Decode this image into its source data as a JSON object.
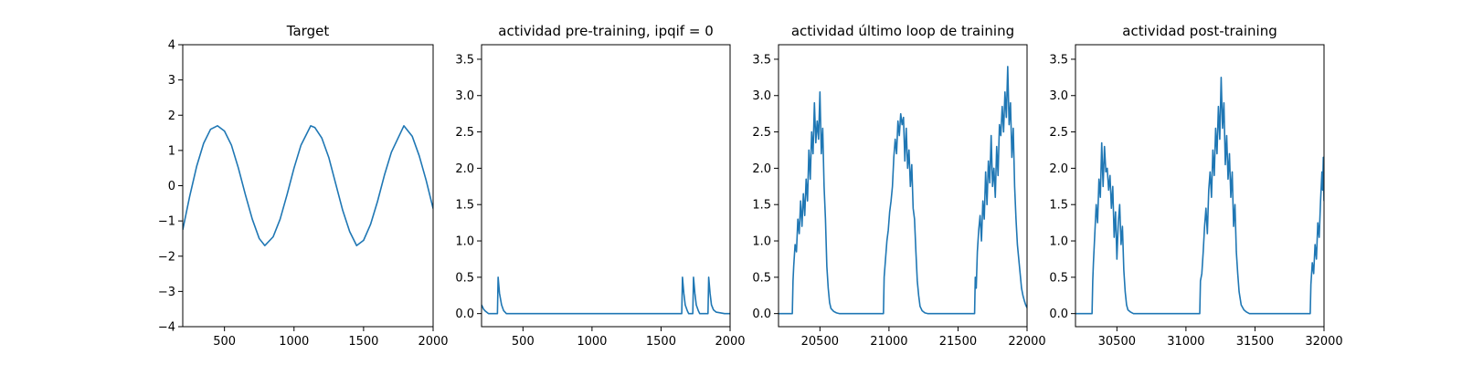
{
  "chart_data": [
    {
      "type": "line",
      "title": "Target",
      "xlim": [
        200,
        2000
      ],
      "ylim": [
        -4,
        4
      ],
      "xticks": [
        500,
        1000,
        1500,
        2000
      ],
      "yticks": [
        -4,
        -3,
        -2,
        -1,
        0,
        1,
        2,
        3,
        4
      ],
      "xtick_labels": [
        "500",
        "1000",
        "1500",
        "2000"
      ],
      "ytick_labels": [
        "−4",
        "−3",
        "−2",
        "−1",
        "0",
        "1",
        "2",
        "3",
        "4"
      ],
      "series": [
        {
          "color": "#1f77b4",
          "x": [
            200,
            250,
            300,
            350,
            400,
            450,
            500,
            550,
            600,
            650,
            700,
            750,
            790,
            850,
            900,
            950,
            1000,
            1050,
            1120,
            1150,
            1200,
            1250,
            1300,
            1350,
            1400,
            1450,
            1500,
            1550,
            1600,
            1650,
            1700,
            1790,
            1850,
            1900,
            1950,
            2000
          ],
          "y": [
            -1.25,
            -0.3,
            0.55,
            1.2,
            1.6,
            1.7,
            1.55,
            1.15,
            0.5,
            -0.25,
            -0.95,
            -1.5,
            -1.7,
            -1.45,
            -0.95,
            -0.25,
            0.5,
            1.15,
            1.7,
            1.65,
            1.35,
            0.8,
            0.05,
            -0.7,
            -1.3,
            -1.7,
            -1.55,
            -1.1,
            -0.45,
            0.3,
            0.95,
            1.7,
            1.4,
            0.85,
            0.15,
            -0.65
          ]
        }
      ]
    },
    {
      "type": "line",
      "title": "actividad pre-training, ipqif = 0",
      "xlim": [
        200,
        2000
      ],
      "ylim": [
        -0.18,
        3.7
      ],
      "xticks": [
        500,
        1000,
        1500,
        2000
      ],
      "yticks": [
        0.0,
        0.5,
        1.0,
        1.5,
        2.0,
        2.5,
        3.0,
        3.5
      ],
      "xtick_labels": [
        "500",
        "1000",
        "1500",
        "2000"
      ],
      "ytick_labels": [
        "0.0",
        "0.5",
        "1.0",
        "1.5",
        "2.0",
        "2.5",
        "3.0",
        "3.5"
      ],
      "series": [
        {
          "color": "#1f77b4",
          "x": [
            200,
            215,
            230,
            250,
            315,
            320,
            330,
            345,
            360,
            380,
            1650,
            1655,
            1665,
            1675,
            1690,
            1700,
            1730,
            1735,
            1745,
            1755,
            1770,
            1780,
            1840,
            1845,
            1855,
            1865,
            1880,
            1900,
            1960,
            2000
          ],
          "y": [
            0.12,
            0.06,
            0.03,
            0.0,
            0.0,
            0.5,
            0.28,
            0.12,
            0.04,
            0.0,
            0.0,
            0.5,
            0.28,
            0.12,
            0.04,
            0.0,
            0.0,
            0.5,
            0.28,
            0.12,
            0.04,
            0.0,
            0.0,
            0.5,
            0.28,
            0.12,
            0.05,
            0.02,
            0.0,
            0.0
          ]
        }
      ]
    },
    {
      "type": "line",
      "title": "actividad último loop de training",
      "xlim": [
        20200,
        22000
      ],
      "ylim": [
        -0.18,
        3.7
      ],
      "xticks": [
        20500,
        21000,
        21500,
        22000
      ],
      "yticks": [
        0.0,
        0.5,
        1.0,
        1.5,
        2.0,
        2.5,
        3.0,
        3.5
      ],
      "xtick_labels": [
        "20500",
        "21000",
        "21500",
        "22000"
      ],
      "ytick_labels": [
        "0.0",
        "0.5",
        "1.0",
        "1.5",
        "2.0",
        "2.5",
        "3.0",
        "3.5"
      ],
      "series": [
        {
          "color": "#1f77b4",
          "x": [
            20200,
            20300,
            20305,
            20310,
            20320,
            20330,
            20340,
            20350,
            20360,
            20370,
            20380,
            20390,
            20400,
            20410,
            20420,
            20430,
            20440,
            20450,
            20460,
            20470,
            20480,
            20490,
            20500,
            20510,
            20520,
            20530,
            20540,
            20550,
            20560,
            20570,
            20580,
            20600,
            20620,
            20640,
            20660,
            20700,
            20960,
            20965,
            20975,
            20985,
            20995,
            21005,
            21015,
            21025,
            21035,
            21045,
            21055,
            21065,
            21075,
            21085,
            21095,
            21105,
            21115,
            21125,
            21135,
            21145,
            21155,
            21165,
            21175,
            21185,
            21195,
            21205,
            21215,
            21225,
            21240,
            21260,
            21280,
            21300,
            21340,
            21620,
            21625,
            21632,
            21640,
            21650,
            21660,
            21670,
            21680,
            21690,
            21700,
            21710,
            21720,
            21730,
            21740,
            21750,
            21760,
            21770,
            21780,
            21790,
            21800,
            21810,
            21820,
            21830,
            21840,
            21850,
            21860,
            21870,
            21880,
            21890,
            21900,
            21910,
            21920,
            21930,
            21940,
            21950,
            21960,
            21970,
            21980,
            21990,
            22000
          ],
          "y": [
            0.0,
            0.0,
            0.45,
            0.65,
            0.95,
            0.85,
            1.3,
            1.1,
            1.55,
            1.2,
            1.65,
            1.35,
            1.85,
            1.55,
            2.25,
            1.85,
            2.5,
            2.2,
            2.9,
            2.35,
            2.65,
            2.4,
            3.05,
            2.2,
            2.55,
            1.75,
            1.3,
            0.65,
            0.35,
            0.15,
            0.07,
            0.03,
            0.01,
            0.0,
            0.0,
            0.0,
            0.0,
            0.5,
            0.75,
            1.0,
            1.15,
            1.4,
            1.55,
            1.75,
            2.15,
            2.4,
            2.2,
            2.65,
            2.45,
            2.75,
            2.6,
            2.7,
            2.1,
            2.55,
            2.0,
            2.25,
            1.75,
            2.05,
            1.45,
            1.3,
            0.85,
            0.45,
            0.25,
            0.1,
            0.04,
            0.01,
            0.0,
            0.0,
            0.0,
            0.0,
            0.5,
            0.35,
            0.85,
            1.15,
            1.35,
            1.0,
            1.55,
            1.3,
            1.95,
            1.5,
            2.1,
            1.8,
            2.45,
            1.75,
            2.0,
            1.6,
            2.3,
            1.9,
            2.6,
            2.45,
            2.85,
            2.5,
            3.05,
            2.7,
            3.4,
            2.6,
            2.9,
            2.15,
            2.55,
            1.75,
            1.3,
            0.95,
            0.75,
            0.55,
            0.35,
            0.25,
            0.18,
            0.12,
            0.08
          ]
        }
      ]
    },
    {
      "type": "line",
      "title": "actividad post-training",
      "xlim": [
        30200,
        32000
      ],
      "ylim": [
        -0.18,
        3.7
      ],
      "xticks": [
        30500,
        31000,
        31500,
        32000
      ],
      "yticks": [
        0.0,
        0.5,
        1.0,
        1.5,
        2.0,
        2.5,
        3.0,
        3.5
      ],
      "xtick_labels": [
        "30500",
        "31000",
        "31500",
        "32000"
      ],
      "ytick_labels": [
        "0.0",
        "0.5",
        "1.0",
        "1.5",
        "2.0",
        "2.5",
        "3.0",
        "3.5"
      ],
      "series": [
        {
          "color": "#1f77b4",
          "x": [
            30200,
            30320,
            30325,
            30330,
            30340,
            30350,
            30360,
            30370,
            30380,
            30390,
            30400,
            30410,
            30420,
            30430,
            30440,
            30450,
            30460,
            30470,
            30480,
            30490,
            30500,
            30510,
            30520,
            30530,
            30540,
            30550,
            30560,
            30570,
            30580,
            30600,
            30620,
            30640,
            30680,
            31100,
            31105,
            31115,
            31125,
            31135,
            31145,
            31155,
            31165,
            31175,
            31185,
            31195,
            31205,
            31215,
            31225,
            31235,
            31245,
            31255,
            31265,
            31275,
            31285,
            31295,
            31305,
            31315,
            31325,
            31335,
            31345,
            31355,
            31365,
            31375,
            31385,
            31400,
            31420,
            31440,
            31460,
            31500,
            31900,
            31905,
            31915,
            31925,
            31935,
            31945,
            31955,
            31965,
            31975,
            31985,
            31990,
            31995,
            32000
          ],
          "y": [
            0.0,
            0.0,
            0.45,
            0.7,
            1.1,
            1.5,
            1.25,
            1.85,
            1.6,
            2.35,
            1.75,
            2.3,
            1.95,
            2.0,
            1.7,
            1.9,
            1.45,
            1.75,
            1.05,
            1.4,
            0.75,
            1.25,
            1.5,
            0.95,
            1.2,
            0.6,
            0.3,
            0.12,
            0.05,
            0.02,
            0.0,
            0.0,
            0.0,
            0.0,
            0.45,
            0.55,
            0.85,
            1.2,
            1.45,
            1.1,
            1.7,
            1.95,
            1.6,
            2.25,
            1.9,
            2.55,
            2.2,
            2.85,
            2.4,
            3.25,
            2.55,
            2.9,
            2.05,
            2.45,
            1.85,
            2.2,
            1.6,
            1.95,
            1.2,
            1.5,
            0.85,
            0.55,
            0.3,
            0.12,
            0.05,
            0.02,
            0.0,
            0.0,
            0.0,
            0.4,
            0.7,
            0.55,
            0.95,
            0.75,
            1.25,
            1.05,
            1.55,
            1.95,
            1.7,
            2.15,
            1.55
          ]
        }
      ]
    }
  ]
}
